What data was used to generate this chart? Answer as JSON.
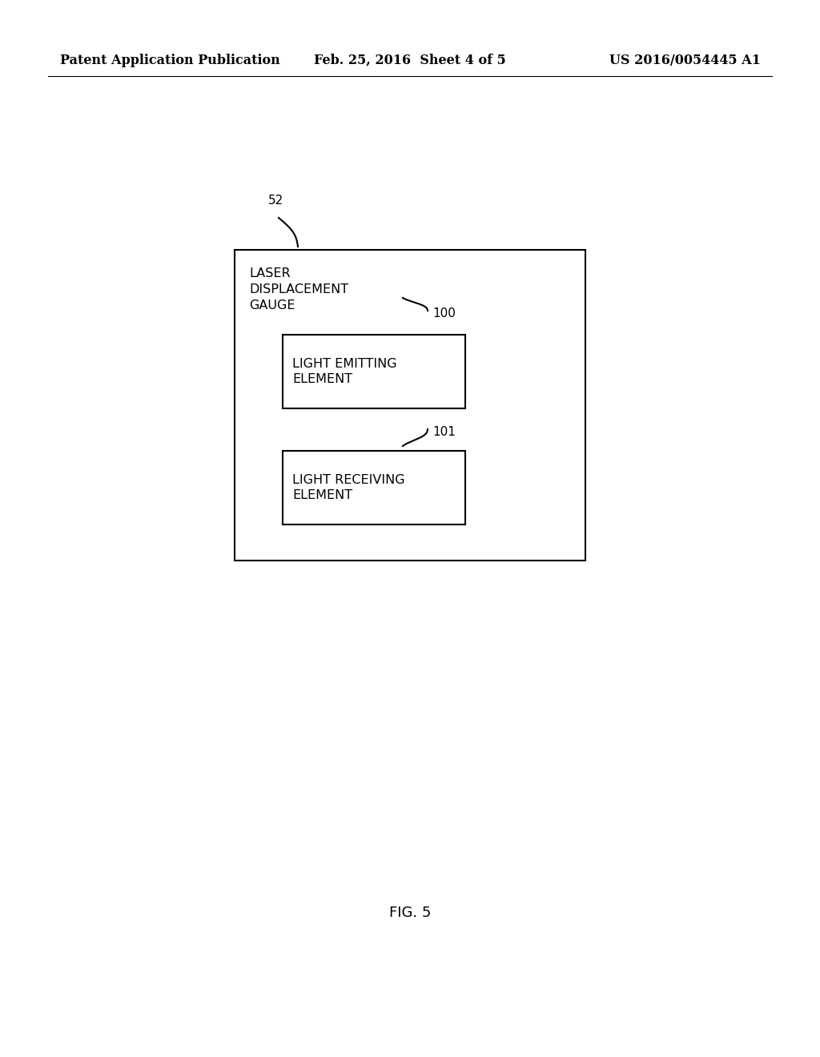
{
  "background_color": "#ffffff",
  "header_left": "Patent Application Publication",
  "header_center": "Feb. 25, 2016  Sheet 4 of 5",
  "header_right": "US 2016/0054445 A1",
  "header_fontsize": 11.5,
  "fig_label": "FIG. 5",
  "fig_label_fontsize": 13,
  "text_color": "#000000",
  "box_color": "#000000",
  "line_width": 1.5,
  "outer_box_label": "LASER\nDISPLACEMENT\nGAUGE",
  "inner_box1_label": "LIGHT EMITTING\nELEMENT",
  "inner_box2_label": "LIGHT RECEIVING\nELEMENT",
  "label_52": "52",
  "label_100": "100",
  "label_101": "101"
}
